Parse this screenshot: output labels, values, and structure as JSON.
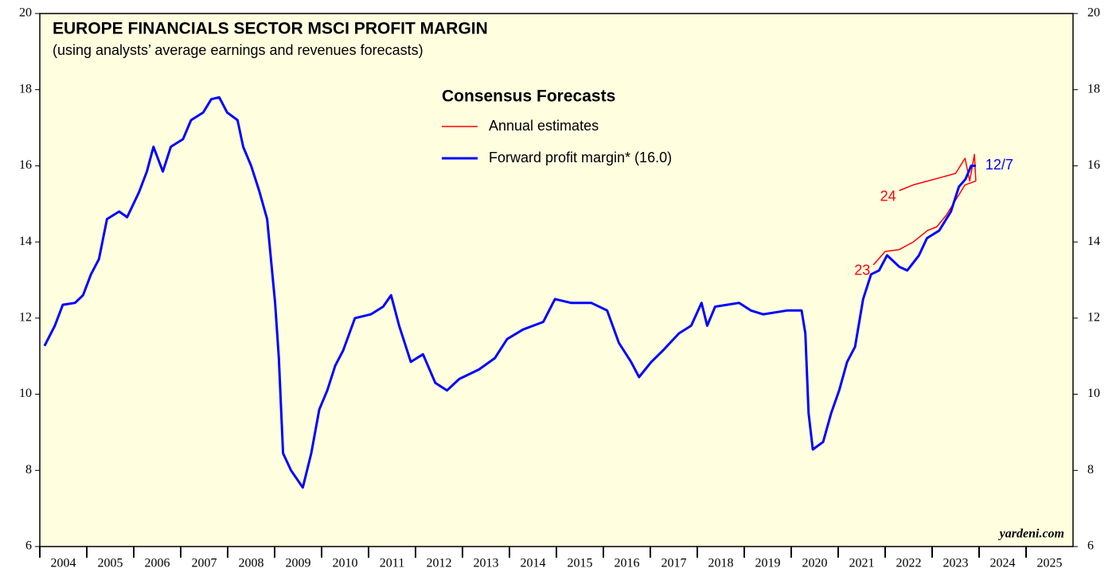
{
  "chart_data": {
    "type": "line",
    "title": "EUROPE FINANCIALS SECTOR MSCI PROFIT MARGIN",
    "subtitle": "(using analysts’ average earnings and revenues forecasts)",
    "source": "yardeni.com",
    "legend": {
      "title": "Consensus Forecasts",
      "entries": [
        {
          "label": "Annual estimates",
          "color": "#ff0000"
        },
        {
          "label": "Forward profit margin* (16.0)",
          "color": "#0000ff"
        }
      ]
    },
    "annotation": "12/7",
    "xlim": [
      2004,
      2026
    ],
    "xticks": [
      {
        "value": 2004,
        "label": "2004"
      },
      {
        "value": 2005,
        "label": "2005"
      },
      {
        "value": 2006,
        "label": "2006"
      },
      {
        "value": 2007,
        "label": "2007"
      },
      {
        "value": 2008,
        "label": "2008"
      },
      {
        "value": 2009,
        "label": "2009"
      },
      {
        "value": 2010,
        "label": "2010"
      },
      {
        "value": 2011,
        "label": "2011"
      },
      {
        "value": 2012,
        "label": "2012"
      },
      {
        "value": 2013,
        "label": "2013"
      },
      {
        "value": 2014,
        "label": "2014"
      },
      {
        "value": 2015,
        "label": "2015"
      },
      {
        "value": 2016,
        "label": "2016"
      },
      {
        "value": 2017,
        "label": "2017"
      },
      {
        "value": 2018,
        "label": "2018"
      },
      {
        "value": 2019,
        "label": "2019"
      },
      {
        "value": 2020,
        "label": "2020"
      },
      {
        "value": 2021,
        "label": "2021"
      },
      {
        "value": 2022,
        "label": "2022"
      },
      {
        "value": 2023,
        "label": "2023"
      },
      {
        "value": 2024,
        "label": "2024"
      },
      {
        "value": 2025,
        "label": "2025"
      }
    ],
    "ylim": [
      6,
      20
    ],
    "yticks": [
      6,
      8,
      10,
      12,
      14,
      16,
      18,
      20
    ],
    "y2lim": [
      6,
      20
    ],
    "y2ticks": [
      6,
      8,
      10,
      12,
      14,
      16,
      18,
      20
    ],
    "series": [
      {
        "name": "23",
        "color": "#ff0000",
        "x": [
          2021.75,
          2022.0,
          2022.3,
          2022.6,
          2022.9,
          2023.1,
          2023.3,
          2023.5,
          2023.7,
          2023.93
        ],
        "values": [
          13.4,
          13.75,
          13.8,
          14.0,
          14.3,
          14.4,
          14.7,
          15.1,
          15.5,
          15.6
        ]
      },
      {
        "name": "24",
        "color": "#ff0000",
        "x": [
          2022.3,
          2022.6,
          2022.9,
          2023.2,
          2023.5,
          2023.7,
          2023.8,
          2023.9,
          2023.93
        ],
        "values": [
          15.35,
          15.5,
          15.6,
          15.7,
          15.8,
          16.2,
          15.6,
          16.3,
          15.6
        ]
      },
      {
        "name": "Forward profit margin* (16.0)",
        "color": "#0000ff",
        "x": [
          2004.1,
          2004.32,
          2004.49,
          2004.75,
          2004.92,
          2005.09,
          2005.26,
          2005.43,
          2005.69,
          2005.86,
          2006.11,
          2006.28,
          2006.42,
          2006.62,
          2006.79,
          2007.05,
          2007.22,
          2007.48,
          2007.65,
          2007.82,
          2007.99,
          2008.21,
          2008.33,
          2008.5,
          2008.67,
          2008.84,
          2009.01,
          2009.09,
          2009.18,
          2009.35,
          2009.6,
          2009.78,
          2009.95,
          2010.12,
          2010.29,
          2010.46,
          2010.71,
          2011.05,
          2011.31,
          2011.48,
          2011.65,
          2011.9,
          2012.16,
          2012.42,
          2012.67,
          2012.93,
          2013.35,
          2013.69,
          2013.95,
          2014.29,
          2014.72,
          2014.97,
          2015.31,
          2015.74,
          2016.08,
          2016.33,
          2016.59,
          2016.76,
          2017.02,
          2017.27,
          2017.61,
          2017.87,
          2018.09,
          2018.21,
          2018.38,
          2018.89,
          2019.14,
          2019.4,
          2019.91,
          2020.22,
          2020.3,
          2020.37,
          2020.46,
          2020.68,
          2020.85,
          2021.02,
          2021.19,
          2021.36,
          2021.53,
          2021.7,
          2021.87,
          2022.04,
          2022.3,
          2022.47,
          2022.72,
          2022.89,
          2023.15,
          2023.4,
          2023.57,
          2023.71,
          2023.83,
          2023.93
        ],
        "values": [
          11.27,
          11.8,
          12.35,
          12.4,
          12.6,
          13.15,
          13.55,
          14.6,
          14.8,
          14.65,
          15.3,
          15.85,
          16.5,
          15.85,
          16.5,
          16.7,
          17.2,
          17.4,
          17.75,
          17.8,
          17.4,
          17.2,
          16.5,
          16.0,
          15.35,
          14.6,
          12.4,
          10.95,
          8.45,
          8.0,
          7.55,
          8.45,
          9.6,
          10.1,
          10.75,
          11.15,
          12.0,
          12.1,
          12.3,
          12.6,
          11.8,
          10.85,
          11.05,
          10.3,
          10.1,
          10.4,
          10.65,
          10.95,
          11.45,
          11.7,
          11.9,
          12.5,
          12.4,
          12.4,
          12.2,
          11.35,
          10.85,
          10.45,
          10.85,
          11.15,
          11.6,
          11.8,
          12.4,
          11.8,
          12.3,
          12.4,
          12.2,
          12.1,
          12.2,
          12.2,
          11.6,
          9.5,
          8.55,
          8.75,
          9.5,
          10.1,
          10.85,
          11.25,
          12.5,
          13.15,
          13.25,
          13.65,
          13.35,
          13.25,
          13.65,
          14.1,
          14.3,
          14.8,
          15.45,
          15.65,
          16.0,
          16.0
        ]
      }
    ]
  }
}
